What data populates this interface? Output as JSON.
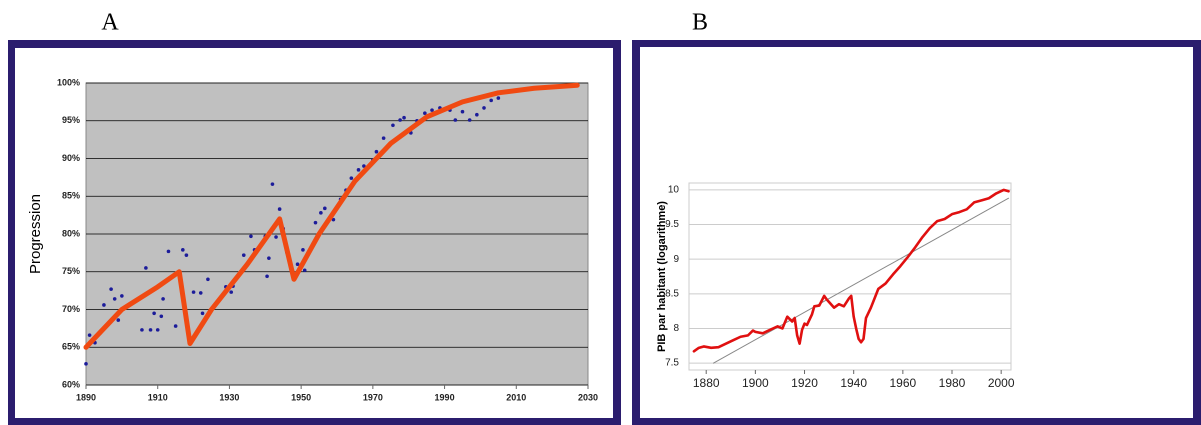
{
  "chart_data": [
    {
      "type": "scatter",
      "title": "A",
      "ylabel": "Progression",
      "grid": true,
      "background": "#c0c0c0",
      "xlim": [
        1890,
        2030
      ],
      "xticks": [
        1890,
        1910,
        1930,
        1950,
        1970,
        1990,
        2010,
        2030
      ],
      "ylim": [
        60,
        100
      ],
      "yticks": [
        {
          "value": 60,
          "label": "60%"
        },
        {
          "value": 65,
          "label": "65%"
        },
        {
          "value": 70,
          "label": "70%"
        },
        {
          "value": 75,
          "label": "75%"
        },
        {
          "value": 80,
          "label": "80%"
        },
        {
          "value": 85,
          "label": "85%"
        },
        {
          "value": 90,
          "label": "90%"
        },
        {
          "value": 95,
          "label": "95%"
        },
        {
          "value": 100,
          "label": "100%"
        }
      ],
      "series": [
        {
          "type": "scatter",
          "color": "#1c1c9a",
          "x": [
            1890,
            1891,
            1892.5,
            1894,
            1895,
            1897,
            1898,
            1899,
            1900,
            1905.6,
            1906.7,
            1908,
            1909,
            1910,
            1911,
            1911.5,
            1913,
            1915,
            1917,
            1918,
            1920,
            1922,
            1922.5,
            1924,
            1929,
            1930.5,
            1931,
            1934,
            1936,
            1937,
            1940,
            1940.5,
            1941,
            1942,
            1943,
            1944,
            1945,
            1946,
            1949,
            1950.5,
            1951,
            1953,
            1954,
            1955.5,
            1956.6,
            1959,
            1961,
            1962.5,
            1964,
            1966,
            1967.5,
            1970,
            1971,
            1973,
            1975.6,
            1977.6,
            1978.7,
            1980.6,
            1982.3,
            1984.5,
            1986.5,
            1988.7,
            1991.5,
            1993,
            1995,
            1997,
            1999,
            2001,
            2003,
            2005,
            2007
          ],
          "values": [
            62.8,
            66.6,
            65.6,
            66.9,
            70.6,
            72.7,
            71.4,
            68.6,
            71.8,
            67.3,
            75.5,
            67.3,
            69.5,
            67.3,
            69.1,
            71.4,
            77.7,
            67.8,
            77.9,
            77.2,
            72.3,
            72.2,
            69.5,
            74,
            73,
            72.3,
            73.1,
            77.2,
            79.7,
            77.9,
            79.7,
            74.4,
            76.8,
            86.6,
            79.6,
            83.3,
            80.7,
            77.6,
            76,
            77.9,
            75.2,
            78.3,
            81.5,
            82.8,
            83.4,
            81.9,
            84.6,
            85.8,
            87.4,
            88.5,
            89,
            89.8,
            90.9,
            92.7,
            94.4,
            95.1,
            95.4,
            93.4,
            95,
            96,
            96.4,
            96.7,
            96.4,
            95.1,
            96.2,
            95.1,
            95.8,
            96.7,
            97.7,
            98,
            98.8
          ]
        },
        {
          "type": "line",
          "color": "#f04a12",
          "x": [
            1890,
            1900,
            1910,
            1916,
            1919,
            1925,
            1935,
            1944,
            1948,
            1955,
            1965,
            1975,
            1985,
            1995,
            2005,
            2015,
            2027
          ],
          "values": [
            65,
            70,
            73,
            75,
            65.5,
            70,
            76,
            82,
            74,
            80,
            87,
            92,
            95.5,
            97.5,
            98.7,
            99.3,
            99.7
          ]
        }
      ]
    },
    {
      "type": "line",
      "title": "B",
      "ylabel": "PIB par habitant (logarithme)",
      "grid": true,
      "background": "#ffffff",
      "xlim": [
        1873,
        2004
      ],
      "xticks": [
        1880,
        1900,
        1920,
        1940,
        1960,
        1980,
        2000
      ],
      "ylim": [
        7.4,
        10.1
      ],
      "yticks": [
        7.5,
        8,
        8.5,
        9,
        9.5,
        10
      ],
      "series": [
        {
          "type": "line",
          "color": "#888888",
          "x": [
            1883,
            2003
          ],
          "values": [
            7.5,
            9.88
          ]
        },
        {
          "type": "line",
          "color": "#e01010",
          "x": [
            1875,
            1877,
            1879,
            1882,
            1885,
            1888,
            1891,
            1894,
            1897,
            1899,
            1900,
            1903,
            1906,
            1909,
            1911,
            1913,
            1915,
            1916,
            1917,
            1918,
            1919,
            1920,
            1921,
            1923,
            1924,
            1926,
            1928,
            1929,
            1930,
            1932,
            1934,
            1936,
            1938,
            1939,
            1940,
            1941,
            1942,
            1943,
            1944,
            1945,
            1947,
            1950,
            1953,
            1956,
            1959,
            1962,
            1965,
            1968,
            1971,
            1974,
            1977,
            1980,
            1983,
            1986,
            1989,
            1992,
            1995,
            1998,
            2001,
            2003
          ],
          "values": [
            7.67,
            7.72,
            7.74,
            7.72,
            7.73,
            7.78,
            7.83,
            7.88,
            7.9,
            7.97,
            7.95,
            7.93,
            7.98,
            8.03,
            8,
            8.17,
            8.1,
            8.15,
            7.9,
            7.78,
            7.98,
            8.07,
            8.05,
            8.2,
            8.32,
            8.33,
            8.47,
            8.42,
            8.38,
            8.3,
            8.35,
            8.32,
            8.43,
            8.47,
            8.17,
            8,
            7.85,
            7.8,
            7.85,
            8.15,
            8.3,
            8.57,
            8.65,
            8.78,
            8.9,
            9.03,
            9.17,
            9.32,
            9.45,
            9.55,
            9.58,
            9.65,
            9.68,
            9.72,
            9.82,
            9.85,
            9.88,
            9.95,
            10,
            9.98
          ]
        }
      ]
    }
  ]
}
